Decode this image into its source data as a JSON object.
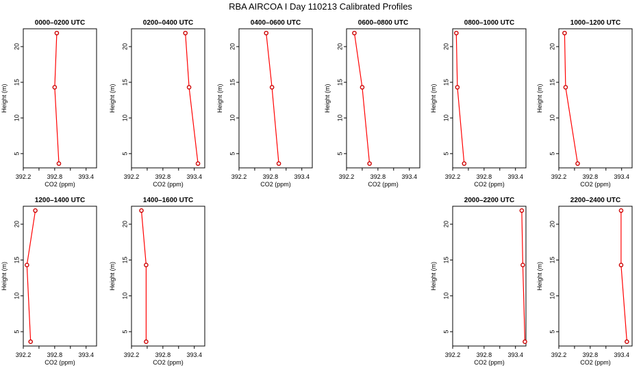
{
  "title": "RBA AIRCOA I  Day 110213  Calibrated Profiles",
  "axes": {
    "xlabel": "CO2 (ppm)",
    "ylabel": "Height (m)",
    "xlim": [
      392.2,
      393.6
    ],
    "ylim": [
      3,
      22.5
    ],
    "xticks": [
      392.2,
      392.8,
      393.4
    ],
    "xtick_labels": [
      "392.2",
      "392.8",
      "393.4"
    ],
    "yticks": [
      5,
      10,
      15,
      20
    ],
    "ytick_labels": [
      "5",
      "10",
      "15",
      "20"
    ]
  },
  "colors": {
    "line": "#ff0000",
    "marker": "#cc0000",
    "frame": "#000000"
  },
  "chart_data": [
    {
      "type": "line",
      "title": "0000–0200 UTC",
      "x": [
        392.88,
        392.8,
        392.84
      ],
      "y": [
        3.6,
        14.3,
        21.9
      ]
    },
    {
      "type": "line",
      "title": "0200–0400 UTC",
      "x": [
        393.47,
        393.3,
        393.23
      ],
      "y": [
        3.6,
        14.3,
        21.9
      ]
    },
    {
      "type": "line",
      "title": "0400–0600 UTC",
      "x": [
        392.96,
        392.83,
        392.72
      ],
      "y": [
        3.6,
        14.3,
        21.9
      ]
    },
    {
      "type": "line",
      "title": "0600–0800 UTC",
      "x": [
        392.64,
        392.5,
        392.35
      ],
      "y": [
        3.6,
        14.3,
        21.9
      ]
    },
    {
      "type": "line",
      "title": "0800–1000 UTC",
      "x": [
        392.42,
        392.29,
        392.27
      ],
      "y": [
        3.6,
        14.3,
        21.9
      ]
    },
    {
      "type": "line",
      "title": "1000–1200 UTC",
      "x": [
        392.56,
        392.33,
        392.31
      ],
      "y": [
        3.6,
        14.3,
        21.9
      ]
    },
    {
      "type": "line",
      "title": "1200–1400 UTC",
      "x": [
        392.34,
        392.27,
        392.43
      ],
      "y": [
        3.6,
        14.3,
        21.9
      ]
    },
    {
      "type": "line",
      "title": "1400–1600 UTC",
      "x": [
        392.48,
        392.48,
        392.39
      ],
      "y": [
        3.6,
        14.3,
        21.9
      ]
    },
    {
      "type": "line",
      "title": "2000–2200 UTC",
      "x": [
        393.58,
        393.54,
        393.52
      ],
      "y": [
        3.6,
        14.3,
        21.9
      ]
    },
    {
      "type": "line",
      "title": "2200–2400 UTC",
      "x": [
        393.5,
        393.39,
        393.39
      ],
      "y": [
        3.6,
        14.3,
        21.9
      ]
    }
  ]
}
